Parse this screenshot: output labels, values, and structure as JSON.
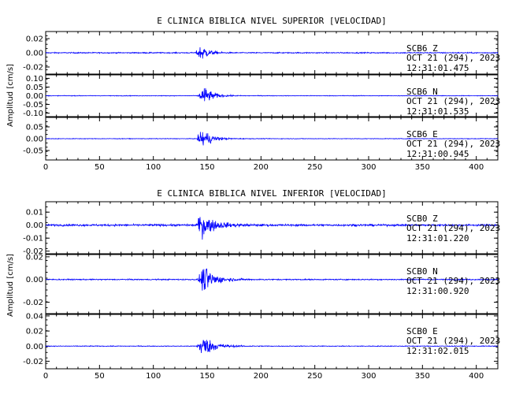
{
  "chart_data": [
    {
      "type": "line",
      "title": "E CLINICA BIBLICA NIVEL SUPERIOR [VELOCIDAD]",
      "ylabel": "Amplitud [cm/s]",
      "xlim": [
        0,
        420
      ],
      "x_ticks": [
        0,
        50,
        100,
        150,
        200,
        250,
        300,
        350,
        400
      ],
      "x_tick_labels": [
        "0",
        "50",
        "100",
        "150",
        "200",
        "250",
        "300",
        "350",
        "400"
      ],
      "panels": [
        {
          "station": "SCB6",
          "component": "Z",
          "date": "OCT 21 (294), 2023",
          "time": "12:31:01.475",
          "ylim": [
            -0.03,
            0.03
          ],
          "y_ticks": [
            -0.02,
            0.0,
            0.02
          ],
          "y_tick_labels": [
            "-0.02",
            "0.00",
            "0.02"
          ],
          "series": [
            {
              "peak_time": 145,
              "peak_amplitude": 0.02,
              "noise_level": 0.0012,
              "decay_s": 6
            }
          ]
        },
        {
          "station": "SCB6",
          "component": "N",
          "date": "OCT 21 (294), 2023",
          "time": "12:31:01.535",
          "ylim": [
            -0.12,
            0.12
          ],
          "y_ticks": [
            -0.1,
            -0.05,
            0.0,
            0.05,
            0.1
          ],
          "y_tick_labels": [
            "-0.10",
            "-0.05",
            "0.00",
            "0.05",
            "0.10"
          ],
          "series": [
            {
              "peak_time": 147,
              "peak_amplitude": 0.09,
              "noise_level": 0.003,
              "decay_s": 8
            }
          ]
        },
        {
          "station": "SCB6",
          "component": "E",
          "date": "OCT 21 (294), 2023",
          "time": "12:31:00.945",
          "ylim": [
            -0.09,
            0.09
          ],
          "y_ticks": [
            -0.05,
            0.0,
            0.05
          ],
          "y_tick_labels": [
            "-0.05",
            "0.00",
            "0.05"
          ],
          "series": [
            {
              "peak_time": 146,
              "peak_amplitude": 0.07,
              "noise_level": 0.002,
              "decay_s": 8
            }
          ]
        }
      ]
    },
    {
      "type": "line",
      "title": "E CLINICA BIBLICA NIVEL INFERIOR [VELOCIDAD]",
      "ylabel": "Amplitud [cm/s]",
      "xlim": [
        0,
        420
      ],
      "x_ticks": [
        0,
        50,
        100,
        150,
        200,
        250,
        300,
        350,
        400
      ],
      "x_tick_labels": [
        "0",
        "50",
        "100",
        "150",
        "200",
        "250",
        "300",
        "350",
        "400"
      ],
      "panels": [
        {
          "station": "SCB0",
          "component": "Z",
          "date": "OCT 21 (294), 2023",
          "time": "12:31:01.220",
          "ylim": [
            -0.022,
            0.018
          ],
          "y_ticks": [
            -0.02,
            -0.01,
            0.0,
            0.01
          ],
          "y_tick_labels": [
            "-0.02",
            "-0.01",
            "0.00",
            "0.01"
          ],
          "series": [
            {
              "peak_time": 145,
              "peak_amplitude": 0.015,
              "noise_level": 0.0012,
              "decay_s": 12
            }
          ]
        },
        {
          "station": "SCB0",
          "component": "N",
          "date": "OCT 21 (294), 2023",
          "time": "12:31:00.920",
          "ylim": [
            -0.03,
            0.022
          ],
          "y_ticks": [
            -0.02,
            0.0,
            0.02
          ],
          "y_tick_labels": [
            "-0.02",
            "0.00",
            "0.02"
          ],
          "series": [
            {
              "peak_time": 147,
              "peak_amplitude": 0.02,
              "noise_level": 0.0008,
              "decay_s": 10
            }
          ]
        },
        {
          "station": "SCB0",
          "component": "E",
          "date": "OCT 21 (294), 2023",
          "time": "12:31:02.015",
          "ylim": [
            -0.03,
            0.042
          ],
          "y_ticks": [
            -0.02,
            0.0,
            0.02,
            0.04
          ],
          "y_tick_labels": [
            "-0.02",
            "0.00",
            "0.02",
            "0.04"
          ],
          "series": [
            {
              "peak_time": 146,
              "peak_amplitude": 0.025,
              "noise_level": 0.0008,
              "decay_s": 10
            }
          ]
        }
      ]
    }
  ],
  "colors": {
    "trace": "#0000ff",
    "axis": "#000000"
  },
  "x_tick_label_zero": "0"
}
